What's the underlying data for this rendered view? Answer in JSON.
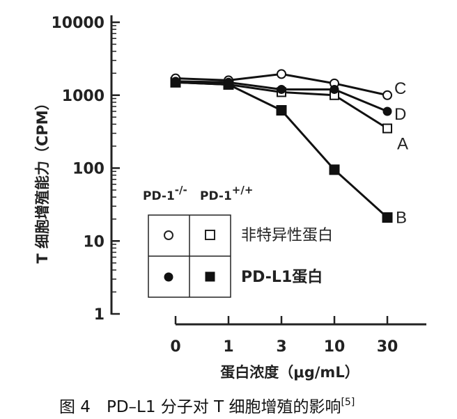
{
  "chart_data": {
    "type": "line",
    "x_scale": "categorical",
    "y_scale": "log",
    "categories": [
      "0",
      "1",
      "3",
      "10",
      "30"
    ],
    "ylim": [
      1,
      10000
    ],
    "y_ticks": [
      "1",
      "10",
      "100",
      "1000",
      "10000"
    ],
    "ylabel": "T 细胞增殖能力（CPM）",
    "xlabel": "蛋白浓度（μg/mL）",
    "series": [
      {
        "name": "A",
        "marker": "open-square",
        "values": [
          1500,
          1400,
          1100,
          1000,
          350
        ]
      },
      {
        "name": "B",
        "marker": "filled-square",
        "values": [
          1500,
          1400,
          620,
          95,
          21
        ]
      },
      {
        "name": "C",
        "marker": "open-circle",
        "values": [
          1700,
          1600,
          1950,
          1450,
          1000
        ]
      },
      {
        "name": "D",
        "marker": "filled-circle",
        "values": [
          1550,
          1500,
          1200,
          1200,
          600
        ]
      }
    ],
    "legend": {
      "col_headers": [
        "PD-1",
        "PD-1"
      ],
      "col_header_sup": [
        "-/-",
        "+/+"
      ],
      "rows": [
        {
          "label": "非特异性蛋白",
          "markers": [
            "open-circle",
            "open-square"
          ]
        },
        {
          "label": "PD-L1蛋白",
          "markers": [
            "filled-circle",
            "filled-square"
          ]
        }
      ]
    }
  },
  "caption": {
    "main": "图 4　PD–L1 分子对 T 细胞增殖的影响",
    "ref": "[5]"
  }
}
